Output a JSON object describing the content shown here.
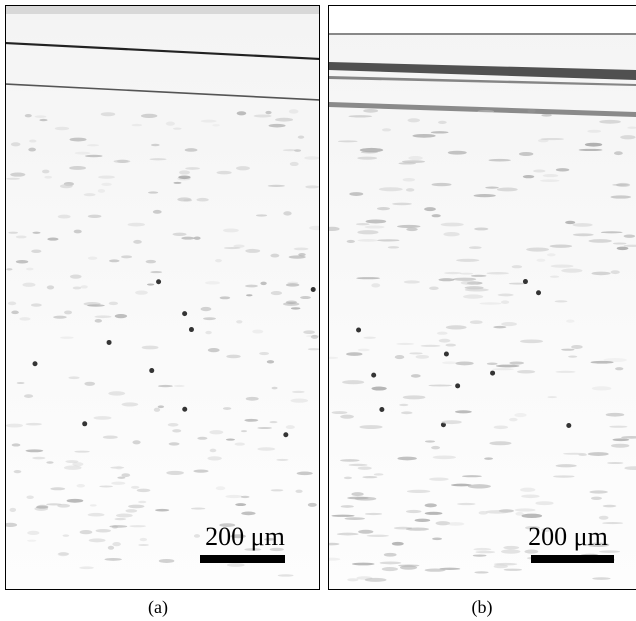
{
  "panels": [
    {
      "scale_label": "200 μm",
      "caption": "(a)"
    },
    {
      "scale_label": "200 μm",
      "caption": "(b)"
    }
  ]
}
